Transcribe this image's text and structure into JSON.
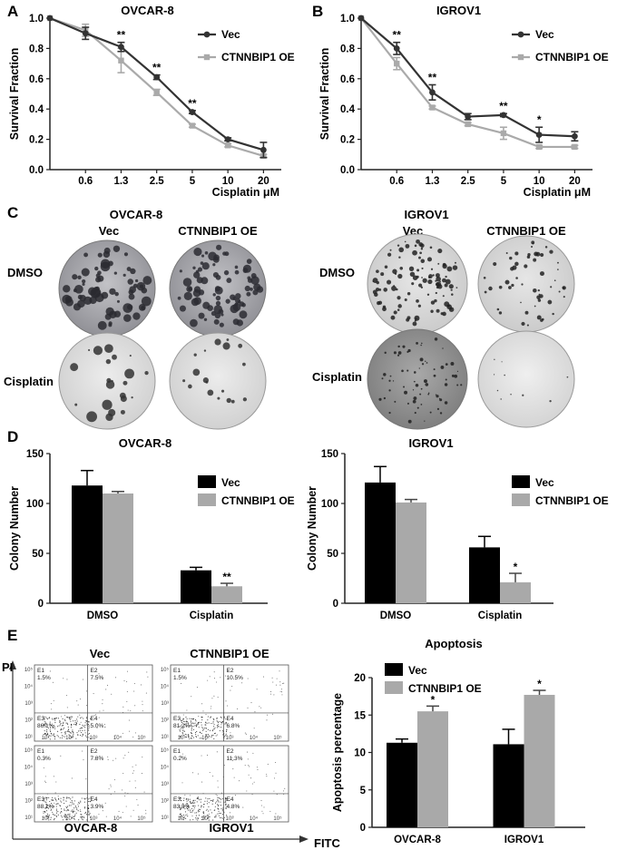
{
  "panels": {
    "A": "A",
    "B": "B",
    "C": "C",
    "D": "D",
    "E": "E"
  },
  "colors": {
    "vec": "#333333",
    "oe": "#aaaaaa",
    "bar_vec": "#000000",
    "bar_oe": "#a9a9a9"
  },
  "legend": {
    "vec": "Vec",
    "oe": "CTNNBIP1 OE"
  },
  "panel_c": {
    "ovcar_title": "OVCAR-8",
    "igrov_title": "IGROV1",
    "col_vec": "Vec",
    "col_oe": "CTNNBIP1 OE",
    "row_dmso": "DMSO",
    "row_cis": "Cisplatin"
  },
  "panel_e": {
    "flow_col_vec": "Vec",
    "flow_col_oe": "CTNNBIP1 OE",
    "flow_row_ovcar": "OVCAR-8",
    "flow_row_igrov": "IGROV1",
    "y_axis": "PI",
    "x_axis": "FITC",
    "quadrants": [
      {
        "e1": "E1",
        "v1": "1.5%",
        "e2": "E2",
        "v2": "7.5%",
        "e3": "E3",
        "v3": "86.1%",
        "e4": "E4",
        "v4": "5.0%"
      },
      {
        "e1": "E1",
        "v1": "1.5%",
        "e2": "E2",
        "v2": "10.5%",
        "e3": "E3",
        "v3": "81.2%",
        "e4": "E4",
        "v4": "6.8%"
      },
      {
        "e1": "E1",
        "v1": "0.3%",
        "e2": "E2",
        "v2": "7.8%",
        "e3": "E3",
        "v3": "88.1%",
        "e4": "E4",
        "v4": "3.9%"
      },
      {
        "e1": "E1",
        "v1": "0.2%",
        "e2": "E2",
        "v2": "11.3%",
        "e3": "E3",
        "v3": "83.8%",
        "e4": "E4",
        "v4": "4.8%"
      }
    ],
    "flow_ticks": [
      "10⁵",
      "10⁴",
      "10³",
      "10²",
      "10¹"
    ]
  },
  "chart_data": [
    {
      "id": "A",
      "type": "line",
      "title": "OVCAR-8",
      "xlabel": "Cisplatin μM",
      "ylabel": "Survival Fraction",
      "categories": [
        "0",
        "0.6",
        "1.3",
        "2.5",
        "5",
        "10",
        "20"
      ],
      "tick_labels": [
        "0.6",
        "1.3",
        "2.5",
        "5",
        "10",
        "20"
      ],
      "ylim": [
        0,
        1.0
      ],
      "yticks": [
        "0.0",
        "0.2",
        "0.4",
        "0.6",
        "0.8",
        "1.0"
      ],
      "series": [
        {
          "name": "Vec",
          "values": [
            1.0,
            0.9,
            0.81,
            0.61,
            0.38,
            0.2,
            0.13
          ],
          "errors": [
            0,
            0.04,
            0.03,
            0.015,
            0.01,
            0.01,
            0.05
          ]
        },
        {
          "name": "CTNNBIP1 OE",
          "values": [
            1.0,
            0.92,
            0.72,
            0.51,
            0.29,
            0.16,
            0.09
          ],
          "errors": [
            0,
            0.04,
            0.08,
            0.02,
            0.01,
            0.01,
            0.01
          ]
        }
      ],
      "significance": [
        {
          "index": 2,
          "label": "**"
        },
        {
          "index": 3,
          "label": "**"
        },
        {
          "index": 4,
          "label": "**"
        }
      ]
    },
    {
      "id": "B",
      "type": "line",
      "title": "IGROV1",
      "xlabel": "Cisplatin μM",
      "ylabel": "Survival Fraction",
      "categories": [
        "0",
        "0.6",
        "1.3",
        "2.5",
        "5",
        "10",
        "20"
      ],
      "tick_labels": [
        "0.6",
        "1.3",
        "2.5",
        "5",
        "10",
        "20"
      ],
      "ylim": [
        0,
        1.0
      ],
      "yticks": [
        "0.0",
        "0.2",
        "0.4",
        "0.6",
        "0.8",
        "1.0"
      ],
      "series": [
        {
          "name": "Vec",
          "values": [
            1.0,
            0.8,
            0.51,
            0.35,
            0.36,
            0.23,
            0.22
          ],
          "errors": [
            0,
            0.04,
            0.05,
            0.02,
            0.01,
            0.05,
            0.03
          ]
        },
        {
          "name": "CTNNBIP1 OE",
          "values": [
            1.0,
            0.7,
            0.41,
            0.3,
            0.24,
            0.15,
            0.15
          ],
          "errors": [
            0,
            0.04,
            0.01,
            0.01,
            0.04,
            0.01,
            0.01
          ]
        }
      ],
      "significance": [
        {
          "index": 1,
          "label": "**"
        },
        {
          "index": 2,
          "label": "**"
        },
        {
          "index": 4,
          "label": "**"
        },
        {
          "index": 5,
          "label": "*"
        }
      ]
    },
    {
      "id": "D-left",
      "type": "bar",
      "title": "OVCAR-8",
      "ylabel": "Colony Number",
      "categories": [
        "DMSO",
        "Cisplatin"
      ],
      "ylim": [
        0,
        150
      ],
      "yticks": [
        "0",
        "50",
        "100",
        "150"
      ],
      "series": [
        {
          "name": "Vec",
          "values": [
            118,
            33
          ],
          "errors": [
            15,
            3
          ]
        },
        {
          "name": "CTNNBIP1 OE",
          "values": [
            110,
            17
          ],
          "errors": [
            2,
            3
          ]
        }
      ],
      "significance": [
        {
          "series": 1,
          "index": 1,
          "label": "**"
        }
      ]
    },
    {
      "id": "D-right",
      "type": "bar",
      "title": "IGROV1",
      "ylabel": "Colony Number",
      "categories": [
        "DMSO",
        "Cisplatin"
      ],
      "ylim": [
        0,
        150
      ],
      "yticks": [
        "0",
        "50",
        "100",
        "150"
      ],
      "series": [
        {
          "name": "Vec",
          "values": [
            121,
            56
          ],
          "errors": [
            16,
            11
          ]
        },
        {
          "name": "CTNNBIP1 OE",
          "values": [
            101,
            21
          ],
          "errors": [
            3,
            9
          ]
        }
      ],
      "significance": [
        {
          "series": 1,
          "index": 1,
          "label": "*"
        }
      ]
    },
    {
      "id": "E-right",
      "type": "bar",
      "title": "Apoptosis",
      "ylabel": "Apoptosis percentage",
      "categories": [
        "OVCAR-8",
        "IGROV1"
      ],
      "ylim": [
        0,
        20
      ],
      "yticks": [
        "0",
        "5",
        "10",
        "15",
        "20"
      ],
      "series": [
        {
          "name": "Vec",
          "values": [
            11.3,
            11.1
          ],
          "errors": [
            0.5,
            2.0
          ]
        },
        {
          "name": "CTNNBIP1 OE",
          "values": [
            15.5,
            17.7
          ],
          "errors": [
            0.7,
            0.6
          ]
        }
      ],
      "significance": [
        {
          "series": 1,
          "index": 0,
          "label": "*"
        },
        {
          "series": 1,
          "index": 1,
          "label": "*"
        }
      ]
    }
  ]
}
